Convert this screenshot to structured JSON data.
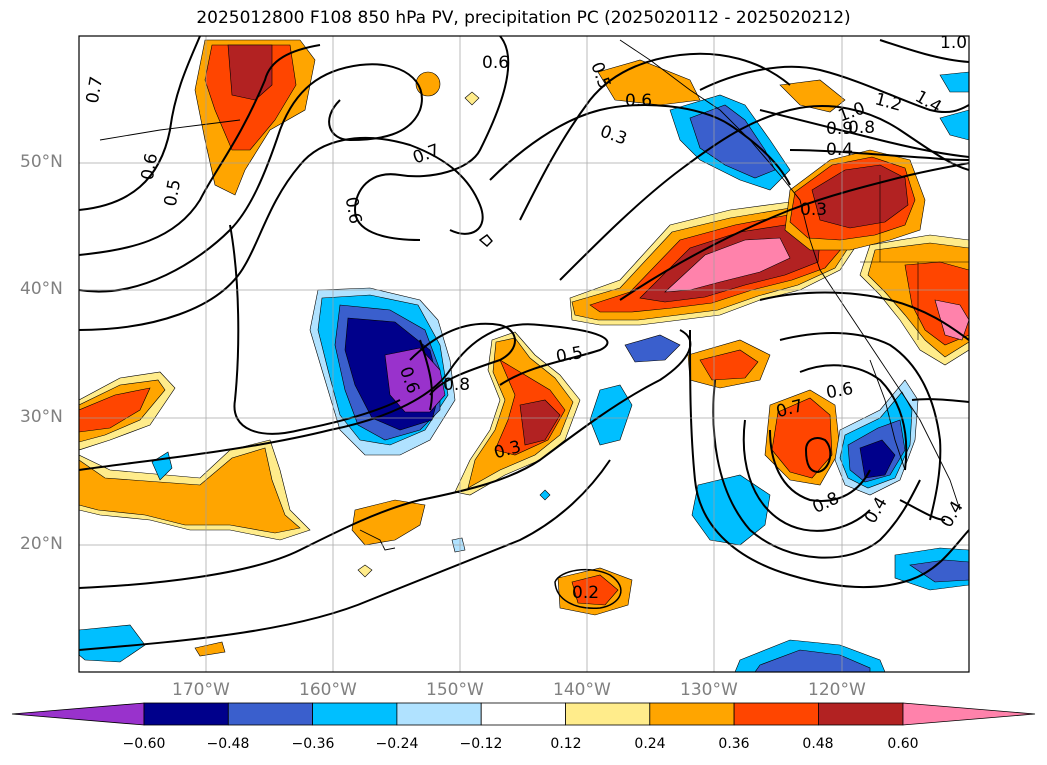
{
  "title": "2025012800 F108 850 hPa PV, precipitation PC (2025020112 - 2025020212)",
  "map": {
    "projection": "PlateCarree",
    "lon_range": [
      -180,
      -110
    ],
    "lat_range": [
      10,
      60
    ],
    "gridlines": true,
    "lat_labels": [
      "50°N",
      "40°N",
      "30°N",
      "20°N"
    ],
    "lon_labels": [
      "170°W",
      "160°W",
      "150°W",
      "140°W",
      "130°W",
      "120°W"
    ]
  },
  "colorbar": {
    "orientation": "horizontal",
    "extend": "both",
    "tick_labels": [
      "−0.60",
      "−0.48",
      "−0.36",
      "−0.24",
      "−0.12",
      "0.12",
      "0.24",
      "0.36",
      "0.48",
      "0.60"
    ],
    "colors": [
      "#9932cc",
      "#00008b",
      "#3a5fcd",
      "#00bfff",
      "#b0e2ff",
      "#ffffff",
      "#ffec8b",
      "#ffa500",
      "#ff4500",
      "#b22222",
      "#ff82ab"
    ]
  },
  "contour_labels": [
    "0.7",
    "0.6",
    "0.5",
    "0.6",
    "0.7",
    "0.6",
    "0.5",
    "0.6",
    "0.3",
    "1.0",
    "1.2",
    "1.4",
    "1.0",
    "0.9",
    "0.8",
    "0.4",
    "0.3",
    "0.6",
    "0.8",
    "0.5",
    "0.3",
    "0.7",
    "0.6",
    "0.8",
    "0.4",
    "0.4",
    "0.2"
  ]
}
